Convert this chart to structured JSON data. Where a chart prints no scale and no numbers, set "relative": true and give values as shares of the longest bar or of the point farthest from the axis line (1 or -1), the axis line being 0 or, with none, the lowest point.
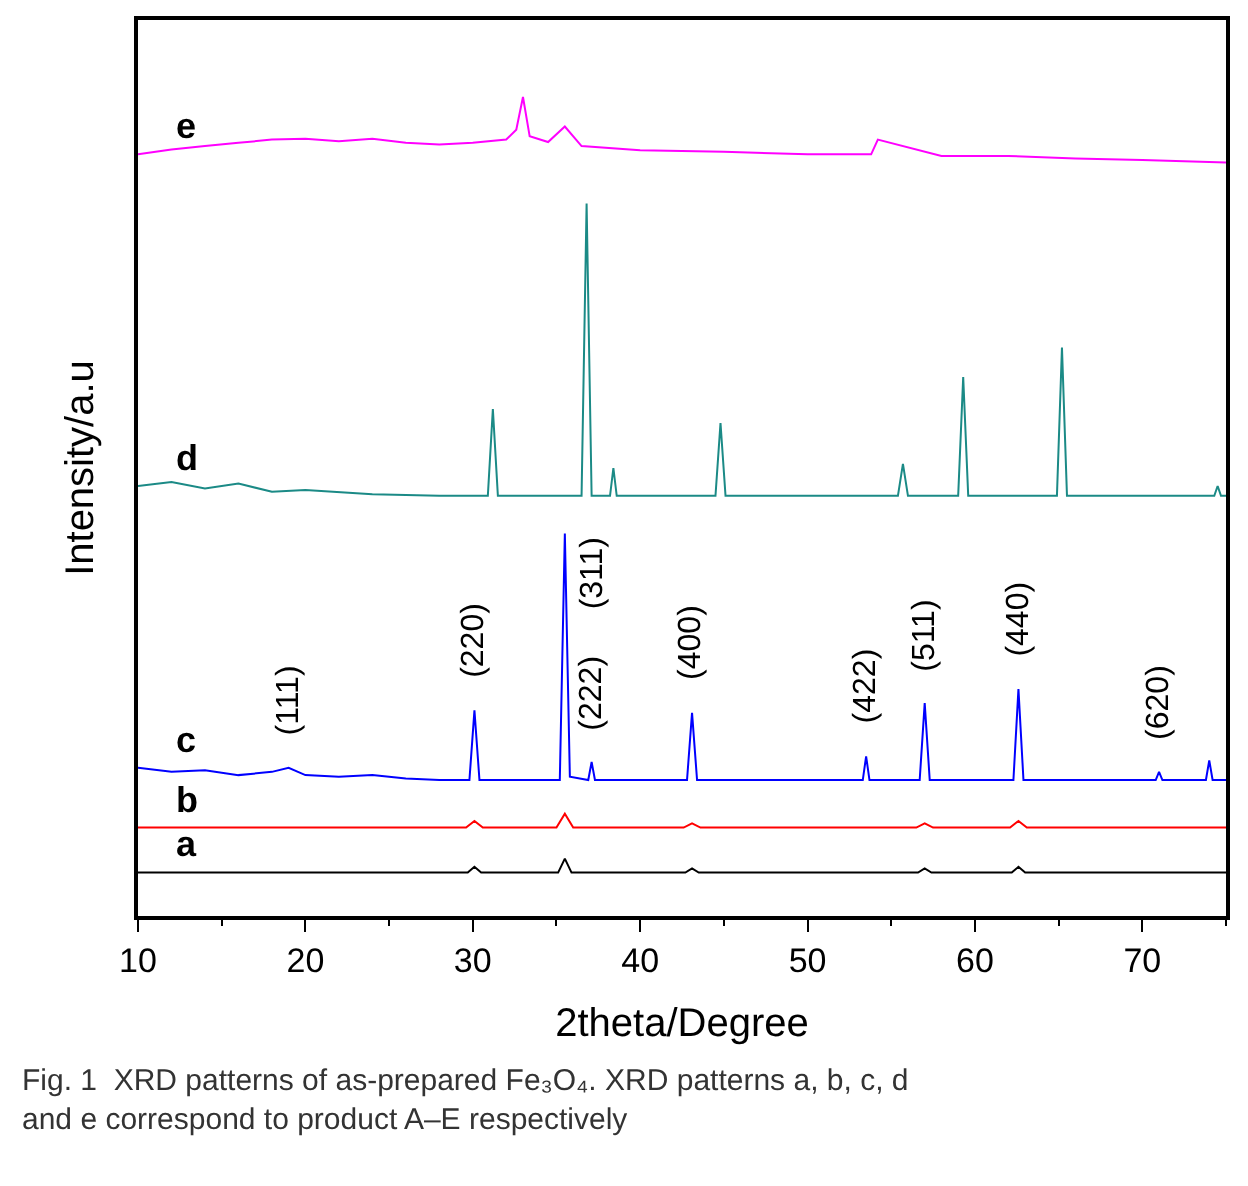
{
  "chart_data": {
    "type": "line",
    "relative": true,
    "xlabel": "2theta/Degree",
    "ylabel": "Intensity/a.u",
    "xlim": [
      10,
      75
    ],
    "xticks": [
      10,
      20,
      30,
      40,
      50,
      60,
      70
    ],
    "legend": false,
    "marker": "none",
    "line_style": "solid",
    "series": [
      {
        "name": "a",
        "color": "#000000",
        "x": [
          10,
          20,
          29.7,
          30.1,
          30.5,
          35.1,
          35.5,
          35.9,
          42.7,
          43.1,
          43.5,
          56.6,
          57.0,
          57.4,
          62.2,
          62.6,
          63.0,
          75
        ],
        "values": [
          0.053,
          0.053,
          0.053,
          0.06,
          0.053,
          0.053,
          0.07,
          0.053,
          0.053,
          0.058,
          0.053,
          0.053,
          0.058,
          0.053,
          0.053,
          0.06,
          0.053,
          0.053
        ]
      },
      {
        "name": "b",
        "color": "#ff0000",
        "x": [
          10,
          20,
          29.6,
          30.1,
          30.6,
          35.0,
          35.5,
          36.0,
          42.6,
          43.1,
          43.6,
          56.5,
          57.0,
          57.5,
          62.1,
          62.6,
          63.1,
          75
        ],
        "values": [
          0.108,
          0.108,
          0.108,
          0.116,
          0.108,
          0.108,
          0.125,
          0.108,
          0.108,
          0.113,
          0.108,
          0.108,
          0.113,
          0.108,
          0.108,
          0.116,
          0.108,
          0.108
        ]
      },
      {
        "name": "c",
        "color": "#0000ff",
        "x": [
          10,
          12,
          14,
          16,
          18,
          19,
          20,
          22,
          24,
          26,
          28,
          29.8,
          30.1,
          30.4,
          35.2,
          35.5,
          35.8,
          36.9,
          37.1,
          37.3,
          42.8,
          43.1,
          43.4,
          50,
          53.3,
          53.5,
          53.7,
          56.7,
          57.0,
          57.3,
          62.3,
          62.6,
          62.9,
          68,
          70.8,
          71.0,
          71.2,
          73.8,
          74.0,
          74.2,
          75
        ],
        "values": [
          0.181,
          0.176,
          0.178,
          0.172,
          0.176,
          0.181,
          0.172,
          0.17,
          0.172,
          0.168,
          0.166,
          0.166,
          0.251,
          0.166,
          0.166,
          0.467,
          0.17,
          0.166,
          0.188,
          0.166,
          0.166,
          0.248,
          0.166,
          0.166,
          0.166,
          0.195,
          0.166,
          0.166,
          0.26,
          0.166,
          0.166,
          0.277,
          0.166,
          0.166,
          0.166,
          0.176,
          0.166,
          0.166,
          0.19,
          0.166,
          0.166
        ]
      },
      {
        "name": "d",
        "color": "#1b8a86",
        "x": [
          10,
          12,
          14,
          16,
          18,
          20,
          24,
          28,
          30.9,
          31.2,
          31.5,
          36.5,
          36.8,
          37.1,
          38.2,
          38.4,
          38.6,
          44.5,
          44.8,
          45.1,
          50,
          55.4,
          55.7,
          56.0,
          59.0,
          59.3,
          59.6,
          64.9,
          65.2,
          65.5,
          70,
          74.3,
          74.5,
          74.7,
          75
        ],
        "values": [
          0.525,
          0.53,
          0.522,
          0.528,
          0.518,
          0.52,
          0.515,
          0.513,
          0.513,
          0.619,
          0.513,
          0.513,
          0.87,
          0.513,
          0.513,
          0.547,
          0.513,
          0.513,
          0.602,
          0.513,
          0.513,
          0.513,
          0.552,
          0.513,
          0.513,
          0.658,
          0.513,
          0.513,
          0.694,
          0.513,
          0.513,
          0.513,
          0.525,
          0.513,
          0.513
        ]
      },
      {
        "name": "e",
        "color": "#ff00ff",
        "x": [
          10,
          12,
          14,
          16,
          18,
          20,
          22,
          24,
          26,
          28,
          30,
          32,
          32.6,
          33.0,
          33.4,
          34.5,
          35.5,
          36.5,
          40,
          45,
          50,
          53.8,
          54.2,
          58,
          62,
          66,
          70,
          75
        ],
        "values": [
          0.93,
          0.936,
          0.94,
          0.944,
          0.948,
          0.949,
          0.946,
          0.949,
          0.944,
          0.942,
          0.944,
          0.948,
          0.96,
          1.0,
          0.952,
          0.945,
          0.964,
          0.94,
          0.935,
          0.933,
          0.93,
          0.93,
          0.948,
          0.928,
          0.928,
          0.925,
          0.923,
          0.92
        ]
      }
    ],
    "annotations": [
      {
        "text": "(111)",
        "x": 19,
        "y": 0.181
      },
      {
        "text": "(220)",
        "x": 30.1,
        "y": 0.251
      },
      {
        "text": "(311)",
        "x": 35.5,
        "y": 0.467
      },
      {
        "text": "(222)",
        "x": 37.1,
        "y": 0.188
      },
      {
        "text": "(400)",
        "x": 43.1,
        "y": 0.248
      },
      {
        "text": "(422)",
        "x": 53.5,
        "y": 0.195
      },
      {
        "text": "(511)",
        "x": 57.0,
        "y": 0.26
      },
      {
        "text": "(440)",
        "x": 62.6,
        "y": 0.277
      },
      {
        "text": "(620)",
        "x": 71.0,
        "y": 0.176
      },
      "Fig. 1  XRD patterns of as-prepared Fe₃O₄. XRD patterns a, b, c, d and e correspond to product A–E respectively"
    ]
  }
}
